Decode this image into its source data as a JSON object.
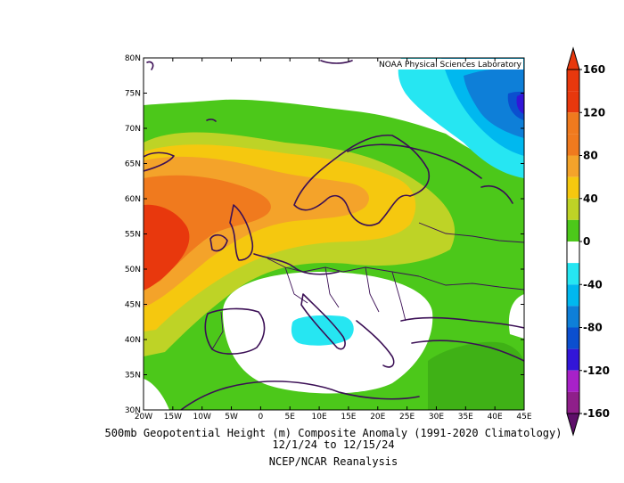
{
  "credit": "NOAA Physical Sciences Laboratory",
  "caption": {
    "line1": "500mb Geopotential Height (m) Composite Anomaly (1991-2020 Climatology)",
    "line2": "12/1/24  to 12/15/24",
    "line3": "NCEP/NCAR Reanalysis"
  },
  "map": {
    "lon_range": [
      -20,
      45
    ],
    "lat_range": [
      30,
      80
    ],
    "lon_ticks": [
      "20W",
      "15W",
      "10W",
      "5W",
      "0",
      "5E",
      "10E",
      "15E",
      "20E",
      "25E",
      "30E",
      "35E",
      "40E",
      "45E"
    ],
    "lat_ticks": [
      "30N",
      "35N",
      "40N",
      "45N",
      "50N",
      "55N",
      "60N",
      "65N",
      "70N",
      "75N",
      "80N"
    ]
  },
  "colorbar": {
    "labels": [
      "160",
      "120",
      "80",
      "40",
      "0",
      "-40",
      "-80",
      "-120",
      "-160"
    ],
    "colors": {
      "c140": "#e8380d",
      "c120": "#f07a1e",
      "c100": "#f4a32a",
      "c80": "#f5c80f",
      "c60": "#bed326",
      "c40": "#4cc81a",
      "c20": "#4cc81a",
      "c0": "#ffffff",
      "m20": "#26e6f2",
      "m40": "#00b8ef",
      "m60": "#0e7fd8",
      "m80": "#0b4fcf",
      "m100": "#3216d8",
      "m120": "#a821c8",
      "m140": "#8f1f8a",
      "m160": "#5e0f6a"
    }
  }
}
